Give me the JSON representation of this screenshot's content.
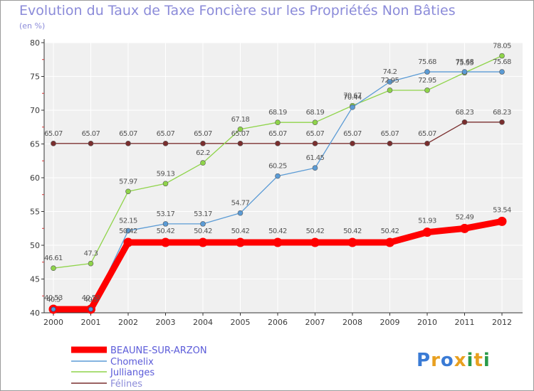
{
  "chart_data": {
    "type": "line",
    "title": "Evolution du Taux de Taxe Foncière sur les Propriétés Non Bâties",
    "unit_label": "(en %)",
    "x": [
      "2000",
      "2001",
      "2002",
      "2003",
      "2004",
      "2005",
      "2006",
      "2007",
      "2008",
      "2009",
      "2010",
      "2011",
      "2012"
    ],
    "ylim": [
      40,
      80
    ],
    "yticks": [
      40,
      45,
      50,
      55,
      60,
      65,
      70,
      75,
      80
    ],
    "series": [
      {
        "name": "BEAUNE-SUR-ARZON",
        "color": "#ff0000",
        "values": [
          40.53,
          40.53,
          50.42,
          50.42,
          50.42,
          50.42,
          50.42,
          50.42,
          50.42,
          50.42,
          51.93,
          52.49,
          53.54
        ],
        "labels": [
          "40.53",
          "40.53",
          "50.42",
          "50.42",
          "50.42",
          "50.42",
          "50.42",
          "50.42",
          "50.42",
          "50.42",
          "51.93",
          "52.49",
          "53.54"
        ]
      },
      {
        "name": "Chomelix",
        "color": "#5b9bd5",
        "values": [
          40.5,
          40.5,
          52.15,
          53.17,
          53.17,
          54.77,
          60.25,
          61.45,
          70.44,
          74.2,
          75.68,
          75.68,
          75.68
        ],
        "labels": [
          "40.5",
          "40.5",
          "52.15",
          "53.17",
          "53.17",
          "54.77",
          "60.25",
          "61.45",
          "70.44",
          "74.2",
          "75.68",
          "75.68",
          "75.68"
        ]
      },
      {
        "name": "Jullianges",
        "color": "#8fd44a",
        "values": [
          46.61,
          47.3,
          57.97,
          59.13,
          62.2,
          67.18,
          68.19,
          68.19,
          70.67,
          72.95,
          72.95,
          75.55,
          78.05
        ],
        "labels": [
          "46.61",
          "47.3",
          "57.97",
          "59.13",
          "62.2",
          "67.18",
          "68.19",
          "68.19",
          "70.67",
          "72.95",
          "72.95",
          "75.55",
          "78.05"
        ]
      },
      {
        "name": "Félines",
        "color": "#7a2e2e",
        "values": [
          65.07,
          65.07,
          65.07,
          65.07,
          65.07,
          65.07,
          65.07,
          65.07,
          65.07,
          65.07,
          65.07,
          68.23,
          68.23
        ],
        "labels": [
          "65.07",
          "65.07",
          "65.07",
          "65.07",
          "65.07",
          "65.07",
          "65.07",
          "65.07",
          "65.07",
          "65.07",
          "65.07",
          "68.23",
          "68.23"
        ]
      }
    ]
  },
  "brand": {
    "letters": [
      "P",
      "r",
      "o",
      "x",
      "i",
      "t",
      "i"
    ],
    "colors": [
      "#3a7bd5",
      "#e8a020",
      "#3a7bd5",
      "#e8a020",
      "#2a9a4a",
      "#e8a020",
      "#2a9a4a"
    ]
  }
}
